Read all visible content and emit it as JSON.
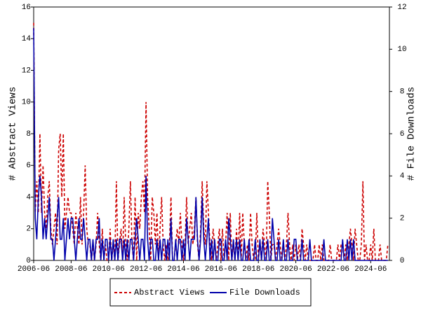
{
  "chart_data": {
    "type": "line",
    "x": [
      "2006-06",
      "2006-07",
      "2006-08",
      "2006-09",
      "2006-10",
      "2006-11",
      "2006-12",
      "2007-01",
      "2007-02",
      "2007-03",
      "2007-04",
      "2007-05",
      "2007-06",
      "2007-07",
      "2007-08",
      "2007-09",
      "2007-10",
      "2007-11",
      "2007-12",
      "2008-01",
      "2008-02",
      "2008-03",
      "2008-04",
      "2008-05",
      "2008-06",
      "2008-07",
      "2008-08",
      "2008-09",
      "2008-10",
      "2008-11",
      "2008-12",
      "2009-01",
      "2009-02",
      "2009-03",
      "2009-04",
      "2009-05",
      "2009-06",
      "2009-07",
      "2009-08",
      "2009-09",
      "2009-10",
      "2009-11",
      "2009-12",
      "2010-01",
      "2010-02",
      "2010-03",
      "2010-04",
      "2010-05",
      "2010-06",
      "2010-07",
      "2010-08",
      "2010-09",
      "2010-10",
      "2010-11",
      "2010-12",
      "2011-01",
      "2011-02",
      "2011-03",
      "2011-04",
      "2011-05",
      "2011-06",
      "2011-07",
      "2011-08",
      "2011-09",
      "2011-10",
      "2011-11",
      "2011-12",
      "2012-01",
      "2012-02",
      "2012-03",
      "2012-04",
      "2012-05",
      "2012-06",
      "2012-07",
      "2012-08",
      "2012-09",
      "2012-10",
      "2012-11",
      "2012-12",
      "2013-01",
      "2013-02",
      "2013-03",
      "2013-04",
      "2013-05",
      "2013-06",
      "2013-07",
      "2013-08",
      "2013-09",
      "2013-10",
      "2013-11",
      "2013-12",
      "2014-01",
      "2014-02",
      "2014-03",
      "2014-04",
      "2014-05",
      "2014-06",
      "2014-07",
      "2014-08",
      "2014-09",
      "2014-10",
      "2014-11",
      "2014-12",
      "2015-01",
      "2015-02",
      "2015-03",
      "2015-04",
      "2015-05",
      "2015-06",
      "2015-07",
      "2015-08",
      "2015-09",
      "2015-10",
      "2015-11",
      "2015-12",
      "2016-01",
      "2016-02",
      "2016-03",
      "2016-04",
      "2016-05",
      "2016-06",
      "2016-07",
      "2016-08",
      "2016-09",
      "2016-10",
      "2016-11",
      "2016-12",
      "2017-01",
      "2017-02",
      "2017-03",
      "2017-04",
      "2017-05",
      "2017-06",
      "2017-07",
      "2017-08",
      "2017-09",
      "2017-10",
      "2017-11",
      "2017-12",
      "2018-01",
      "2018-02",
      "2018-03",
      "2018-04",
      "2018-05",
      "2018-06",
      "2018-07",
      "2018-08",
      "2018-09",
      "2018-10",
      "2018-11",
      "2018-12",
      "2019-01",
      "2019-02",
      "2019-03",
      "2019-04",
      "2019-05",
      "2019-06",
      "2019-07",
      "2019-08",
      "2019-09",
      "2019-10",
      "2019-11",
      "2019-12",
      "2020-01",
      "2020-02",
      "2020-03",
      "2020-04",
      "2020-05",
      "2020-06",
      "2020-07",
      "2020-08",
      "2020-09",
      "2020-10",
      "2020-11",
      "2020-12",
      "2021-01",
      "2021-02",
      "2021-03",
      "2021-04",
      "2021-05",
      "2021-06",
      "2021-07",
      "2021-08",
      "2021-09",
      "2021-10",
      "2021-11",
      "2021-12",
      "2022-01",
      "2022-02",
      "2022-03",
      "2022-04",
      "2022-05",
      "2022-06",
      "2022-07",
      "2022-08",
      "2022-09",
      "2022-10",
      "2022-11",
      "2022-12",
      "2023-01",
      "2023-02",
      "2023-03",
      "2023-04",
      "2023-05",
      "2023-06",
      "2023-07",
      "2023-08",
      "2023-09",
      "2023-10",
      "2023-11",
      "2023-12",
      "2024-01",
      "2024-02",
      "2024-03",
      "2024-04",
      "2024-05",
      "2024-06",
      "2024-07",
      "2024-08",
      "2024-09",
      "2024-10",
      "2024-11",
      "2024-12",
      "2025-01",
      "2025-02",
      "2025-03",
      "2025-04",
      "2025-05"
    ],
    "series": [
      {
        "name": "Abstract Views",
        "color": "#cc0000",
        "dash": true,
        "values": [
          15,
          3,
          5,
          3,
          8,
          3,
          6,
          3,
          2,
          4,
          5,
          2,
          1,
          2,
          3,
          1,
          7,
          8,
          4,
          8,
          2,
          3,
          4,
          3,
          3,
          2,
          1,
          3,
          2,
          1,
          4,
          1,
          3,
          6,
          2,
          1,
          1,
          0,
          1,
          0,
          1,
          3,
          1,
          0,
          2,
          0,
          1,
          0,
          0,
          2,
          0,
          1,
          0,
          5,
          0,
          1,
          2,
          0,
          4,
          1,
          0,
          2,
          5,
          1,
          0,
          4,
          0,
          3,
          2,
          4,
          5,
          3,
          10,
          4,
          2,
          0,
          4,
          3,
          1,
          3,
          0,
          2,
          4,
          1,
          0,
          1,
          0,
          1,
          4,
          0,
          0,
          1,
          2,
          1,
          3,
          1,
          0,
          1,
          4,
          1,
          2,
          3,
          1,
          2,
          4,
          1,
          0,
          2,
          5,
          2,
          1,
          5,
          3,
          1,
          0,
          2,
          1,
          0,
          1,
          2,
          0,
          2,
          0,
          1,
          3,
          0,
          3,
          0,
          1,
          0,
          2,
          0,
          3,
          0,
          3,
          1,
          0,
          1,
          0,
          3,
          1,
          0,
          0,
          3,
          0,
          1,
          0,
          2,
          1,
          0,
          5,
          3,
          0,
          1,
          1,
          0,
          1,
          2,
          1,
          0,
          1,
          0,
          1,
          3,
          1,
          0,
          1,
          0,
          1,
          0,
          1,
          0,
          2,
          1,
          0,
          1,
          0,
          0,
          0,
          0,
          1,
          0,
          0,
          1,
          0,
          1,
          0,
          0,
          0,
          0,
          1,
          0,
          0,
          0,
          0,
          1,
          0,
          1,
          1,
          0,
          1,
          0,
          1,
          2,
          1,
          0,
          2,
          1,
          0,
          0,
          1,
          5,
          0,
          1,
          0,
          0,
          1,
          0,
          2,
          0,
          0,
          0,
          1,
          0,
          0,
          0,
          0,
          1
        ]
      },
      {
        "name": "File Downloads",
        "color": "#0000aa",
        "axis": "y2",
        "values": [
          11,
          2,
          1,
          3,
          4,
          3,
          1,
          2,
          1,
          2,
          3,
          1,
          1,
          0,
          1,
          2,
          3,
          1,
          1,
          2,
          0,
          1,
          2,
          1,
          2,
          2,
          1,
          0,
          1,
          2,
          1,
          1,
          2,
          1,
          0,
          1,
          1,
          0,
          1,
          0,
          1,
          1,
          2,
          0,
          1,
          0,
          1,
          1,
          0,
          1,
          0,
          1,
          0,
          1,
          0,
          1,
          1,
          0,
          1,
          0,
          1,
          0,
          1,
          1,
          0,
          1,
          2,
          1,
          0,
          1,
          1,
          0,
          4,
          1,
          0,
          1,
          1,
          0,
          0,
          1,
          0,
          1,
          0,
          1,
          1,
          0,
          1,
          0,
          2,
          0,
          0,
          1,
          0,
          1,
          1,
          0,
          1,
          0,
          2,
          1,
          0,
          1,
          1,
          1,
          3,
          1,
          0,
          1,
          3,
          1,
          0,
          1,
          2,
          0,
          1,
          0,
          1,
          0,
          0,
          1,
          1,
          0,
          0,
          1,
          0,
          2,
          1,
          0,
          1,
          0,
          1,
          0,
          1,
          0,
          0,
          1,
          0,
          0,
          1,
          0,
          0,
          0,
          1,
          0,
          0,
          1,
          0,
          1,
          0,
          0,
          1,
          0,
          0,
          2,
          1,
          0,
          0,
          1,
          0,
          0,
          1,
          0,
          0,
          1,
          0,
          0,
          0,
          1,
          1,
          0,
          0,
          0,
          1,
          0,
          0,
          0,
          0,
          1,
          0,
          0,
          0,
          0,
          0,
          0,
          0,
          0,
          1,
          0,
          0,
          0,
          0,
          0,
          0,
          0,
          0,
          0,
          0,
          0,
          1,
          0,
          0,
          1,
          0,
          1,
          0,
          1,
          0,
          0,
          0,
          0,
          0,
          0,
          0,
          0,
          0,
          0,
          0,
          0,
          0,
          0,
          0,
          0,
          0,
          0,
          0,
          0,
          0,
          0
        ]
      }
    ],
    "ylabel": "# Abstract Views",
    "y2label": "# File Downloads",
    "ylim": [
      0,
      16
    ],
    "yticks": [
      0,
      2,
      4,
      6,
      8,
      10,
      12,
      14,
      16
    ],
    "y2lim": [
      0,
      12
    ],
    "y2ticks": [
      0,
      2,
      4,
      6,
      8,
      10,
      12
    ],
    "xticks": [
      "2006-06",
      "2008-06",
      "2010-06",
      "2012-06",
      "2014-06",
      "2016-06",
      "2018-06",
      "2020-06",
      "2022-06",
      "2024-06"
    ]
  }
}
